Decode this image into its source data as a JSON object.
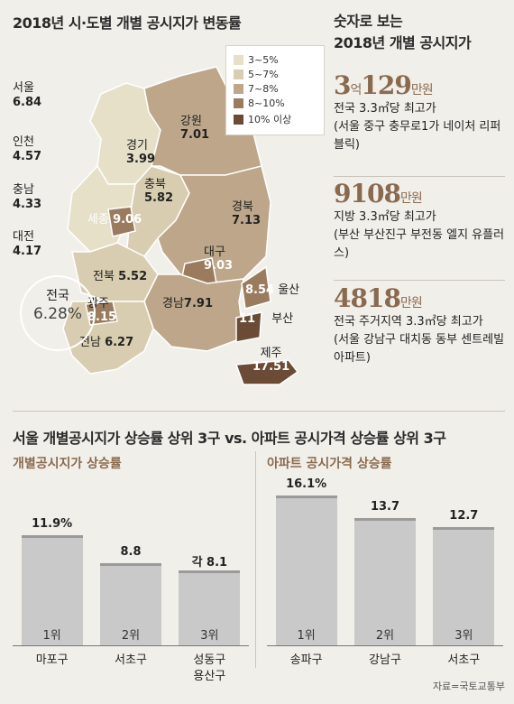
{
  "map_title": "2018년 시·도별 개별 공시지가 변동률",
  "legend": [
    {
      "label": "3~5%",
      "color": "#e6e0c8"
    },
    {
      "label": "5~7%",
      "color": "#d8cdb0"
    },
    {
      "label": "7~8%",
      "color": "#bda68a"
    },
    {
      "label": "8~10%",
      "color": "#9a7b5e"
    },
    {
      "label": "10% 이상",
      "color": "#6b4b35"
    }
  ],
  "regions": {
    "seoul": {
      "name": "서울",
      "value": "6.84"
    },
    "incheon": {
      "name": "인천",
      "value": "4.57"
    },
    "chungnam": {
      "name": "충남",
      "value": "4.33"
    },
    "daejeon": {
      "name": "대전",
      "value": "4.17"
    },
    "gyeonggi": {
      "name": "경기",
      "value": "3.99"
    },
    "gangwon": {
      "name": "강원",
      "value": "7.01"
    },
    "chungbuk": {
      "name": "충북",
      "value": "5.82"
    },
    "sejong": {
      "name": "세종",
      "value": "9.06"
    },
    "gyeongbuk": {
      "name": "경북",
      "value": "7.13"
    },
    "daegu": {
      "name": "대구",
      "value": "9.03"
    },
    "jeonbuk": {
      "name": "전북",
      "value": "5.52"
    },
    "ulsan": {
      "name": "울산",
      "value": "8.54"
    },
    "gwangju": {
      "name": "광주",
      "value": "8.15"
    },
    "gyeongnam": {
      "name": "경남",
      "value": "7.91"
    },
    "busan": {
      "name": "부산",
      "value": "11"
    },
    "jeonnam": {
      "name": "전남",
      "value": "6.27"
    },
    "jeju": {
      "name": "제주",
      "value": "17.51"
    }
  },
  "national": {
    "name": "전국",
    "value": "6.28%"
  },
  "right_panel": {
    "title_line1": "숫자로 보는",
    "title_line2": "2018년 개별 공시지가",
    "stats": [
      {
        "num_a": "3",
        "unit_a": "억",
        "num_b": "129",
        "unit_b": "만원",
        "desc1": "전국 3.3㎡당 최고가",
        "desc2": "(서울 중구 충무로1가 네이처 리퍼블릭)"
      },
      {
        "num_a": "",
        "unit_a": "",
        "num_b": "9108",
        "unit_b": "만원",
        "desc1": "지방 3.3㎡당 최고가",
        "desc2": "(부산 부산진구 부전동 엘지 유플러스)"
      },
      {
        "num_a": "",
        "unit_a": "",
        "num_b": "4818",
        "unit_b": "만원",
        "desc1": "전국 주거지역 3.3㎡당 최고가",
        "desc2": "(서울 강남구 대치동 동부 센트레빌아파트)"
      }
    ]
  },
  "bar_title": "서울 개별공시지가 상승률 상위 3구 vs. 아파트 공시가격 상승률 상위 3구",
  "source": "자료=국토교통부",
  "chart_data": [
    {
      "type": "bar",
      "title": "개별공시지가 상승률",
      "bars": [
        {
          "category": "마포구",
          "value": 11.9,
          "label": "11.9%",
          "rank": "1위"
        },
        {
          "category": "서초구",
          "value": 8.8,
          "label": "8.8",
          "rank": "2위"
        },
        {
          "category": "성동구 용산구",
          "value": 8.1,
          "label": "각 8.1",
          "rank": "3위"
        }
      ]
    },
    {
      "type": "bar",
      "title": "아파트 공시가격 상승률",
      "bars": [
        {
          "category": "송파구",
          "value": 16.1,
          "label": "16.1%",
          "rank": "1위"
        },
        {
          "category": "강남구",
          "value": 13.7,
          "label": "13.7",
          "rank": "2위"
        },
        {
          "category": "서초구",
          "value": 12.7,
          "label": "12.7",
          "rank": "3위"
        }
      ]
    }
  ]
}
